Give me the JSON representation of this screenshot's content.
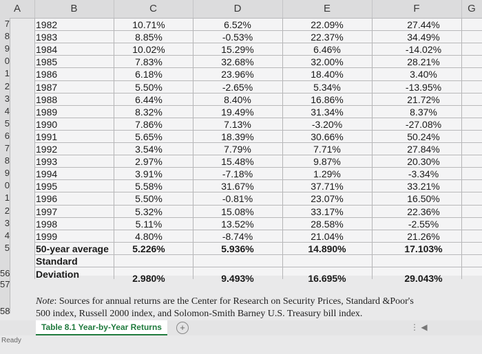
{
  "columns": [
    "A",
    "B",
    "C",
    "D",
    "E",
    "F",
    "G"
  ],
  "row_numbers": [
    "7",
    "8",
    "9",
    "0",
    "1",
    "2",
    "3",
    "4",
    "5",
    "6",
    "7",
    "8",
    "9",
    "0",
    "1",
    "2",
    "3",
    "4",
    "5",
    "",
    "56",
    "57",
    "58"
  ],
  "rows": [
    {
      "b": "1982",
      "c": "10.71%",
      "d": "6.52%",
      "e": "22.09%",
      "f": "27.44%"
    },
    {
      "b": "1983",
      "c": "8.85%",
      "d": "-0.53%",
      "e": "22.37%",
      "f": "34.49%"
    },
    {
      "b": "1984",
      "c": "10.02%",
      "d": "15.29%",
      "e": "6.46%",
      "f": "-14.02%"
    },
    {
      "b": "1985",
      "c": "7.83%",
      "d": "32.68%",
      "e": "32.00%",
      "f": "28.21%"
    },
    {
      "b": "1986",
      "c": "6.18%",
      "d": "23.96%",
      "e": "18.40%",
      "f": "3.40%"
    },
    {
      "b": "1987",
      "c": "5.50%",
      "d": "-2.65%",
      "e": "5.34%",
      "f": "-13.95%"
    },
    {
      "b": "1988",
      "c": "6.44%",
      "d": "8.40%",
      "e": "16.86%",
      "f": "21.72%"
    },
    {
      "b": "1989",
      "c": "8.32%",
      "d": "19.49%",
      "e": "31.34%",
      "f": "8.37%"
    },
    {
      "b": "1990",
      "c": "7.86%",
      "d": "7.13%",
      "e": "-3.20%",
      "f": "-27.08%"
    },
    {
      "b": "1991",
      "c": "5.65%",
      "d": "18.39%",
      "e": "30.66%",
      "f": "50.24%"
    },
    {
      "b": "1992",
      "c": "3.54%",
      "d": "7.79%",
      "e": "7.71%",
      "f": "27.84%"
    },
    {
      "b": "1993",
      "c": "2.97%",
      "d": "15.48%",
      "e": "9.87%",
      "f": "20.30%"
    },
    {
      "b": "1994",
      "c": "3.91%",
      "d": "-7.18%",
      "e": "1.29%",
      "f": "-3.34%"
    },
    {
      "b": "1995",
      "c": "5.58%",
      "d": "31.67%",
      "e": "37.71%",
      "f": "33.21%"
    },
    {
      "b": "1996",
      "c": "5.50%",
      "d": "-0.81%",
      "e": "23.07%",
      "f": "16.50%"
    },
    {
      "b": "1997",
      "c": "5.32%",
      "d": "15.08%",
      "e": "33.17%",
      "f": "22.36%"
    },
    {
      "b": "1998",
      "c": "5.11%",
      "d": "13.52%",
      "e": "28.58%",
      "f": "-2.55%"
    },
    {
      "b": "1999",
      "c": "4.80%",
      "d": "-8.74%",
      "e": "21.04%",
      "f": "21.26%"
    }
  ],
  "average": {
    "label": "50-year average",
    "c": "5.226%",
    "d": "5.936%",
    "e": "14.890%",
    "f": "17.103%"
  },
  "stdev": {
    "label_1": "Standard",
    "label_2": "Deviation",
    "c": "2.980%",
    "d": "9.493%",
    "e": "16.695%",
    "f": "29.043%"
  },
  "note": {
    "label": "Note",
    "line_1": ": Sources for annual returns are the Center for Research on Security Prices, Standard &Poor's",
    "line_2": "500 index, Russell 2000 index, and Solomon-Smith Barney U.S. Treasury bill index."
  },
  "sheet_tab": "Table 8.1 Year-by-Year Returns",
  "add_sheet": "+",
  "status": "Ready"
}
